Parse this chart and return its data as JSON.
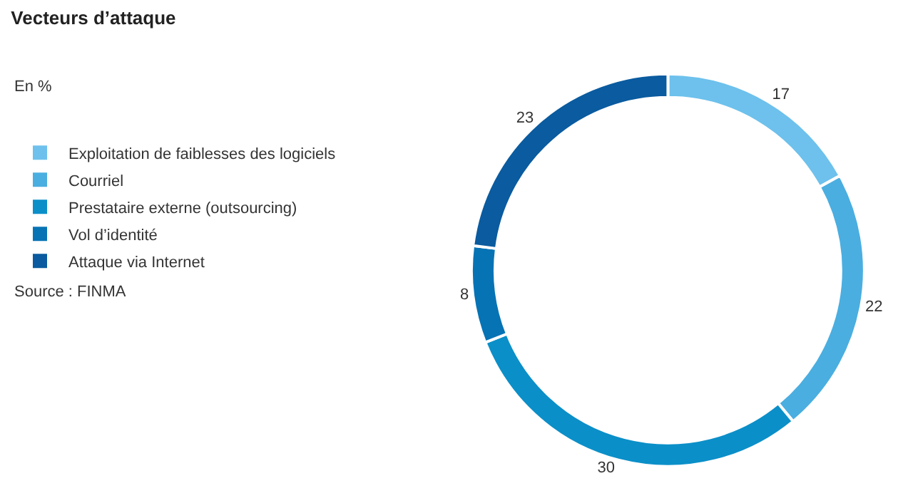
{
  "chart_data": {
    "type": "donut",
    "title": "Vecteurs d’attaque",
    "subtitle": "En %",
    "categories": [
      "Exploitation de faiblesses des logiciels",
      "Courriel",
      "Prestataire externe (outsourcing)",
      "Vol d’identité",
      "Attaque via Internet"
    ],
    "values": [
      17,
      22,
      30,
      8,
      23
    ],
    "colors": [
      "#6dc1ec",
      "#4aaee0",
      "#0b8fc8",
      "#0673b5",
      "#0a5b9f"
    ],
    "data_labels": true,
    "legend": "left",
    "annotations": [
      "Source : FINMA"
    ]
  }
}
